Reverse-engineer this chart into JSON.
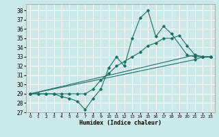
{
  "xlabel": "Humidex (Indice chaleur)",
  "xlim": [
    -0.5,
    23.5
  ],
  "ylim": [
    27,
    38.7
  ],
  "yticks": [
    27,
    28,
    29,
    30,
    31,
    32,
    33,
    34,
    35,
    36,
    37,
    38
  ],
  "xticks": [
    0,
    1,
    2,
    3,
    4,
    5,
    6,
    7,
    8,
    9,
    10,
    11,
    12,
    13,
    14,
    15,
    16,
    17,
    18,
    19,
    20,
    21,
    22,
    23
  ],
  "bg_color": "#cce8e8",
  "line_color": "#1a7060",
  "grid_color": "#ffffff",
  "lines": [
    {
      "x": [
        0,
        1,
        2,
        3,
        4,
        5,
        6,
        7,
        8,
        9,
        10,
        11,
        12,
        13,
        14,
        15,
        16,
        17,
        18,
        20,
        21,
        22,
        23
      ],
      "y": [
        29,
        29,
        29,
        29,
        28.7,
        28.5,
        28.2,
        27.3,
        28.5,
        29.5,
        31.8,
        33.0,
        32.0,
        35.0,
        37.2,
        38.0,
        35.2,
        36.3,
        35.5,
        33.2,
        33.0,
        33.0,
        33.0
      ]
    },
    {
      "x": [
        0,
        1,
        2,
        3,
        4,
        5,
        6,
        7,
        8,
        9,
        10,
        11,
        12,
        13,
        14,
        15,
        16,
        17,
        18,
        19,
        20,
        21,
        22,
        23
      ],
      "y": [
        29,
        29,
        29,
        29,
        29.0,
        29.0,
        29.0,
        29.0,
        29.5,
        30.5,
        31.2,
        32.0,
        32.5,
        33.0,
        33.5,
        34.2,
        34.5,
        35.0,
        35.0,
        35.3,
        34.2,
        33.2,
        33.0,
        33.0
      ]
    },
    {
      "x": [
        0,
        21,
        22,
        23
      ],
      "y": [
        29,
        33.2,
        33.0,
        33.0
      ]
    },
    {
      "x": [
        0,
        21,
        22,
        23
      ],
      "y": [
        29,
        32.7,
        33.0,
        33.0
      ]
    }
  ]
}
